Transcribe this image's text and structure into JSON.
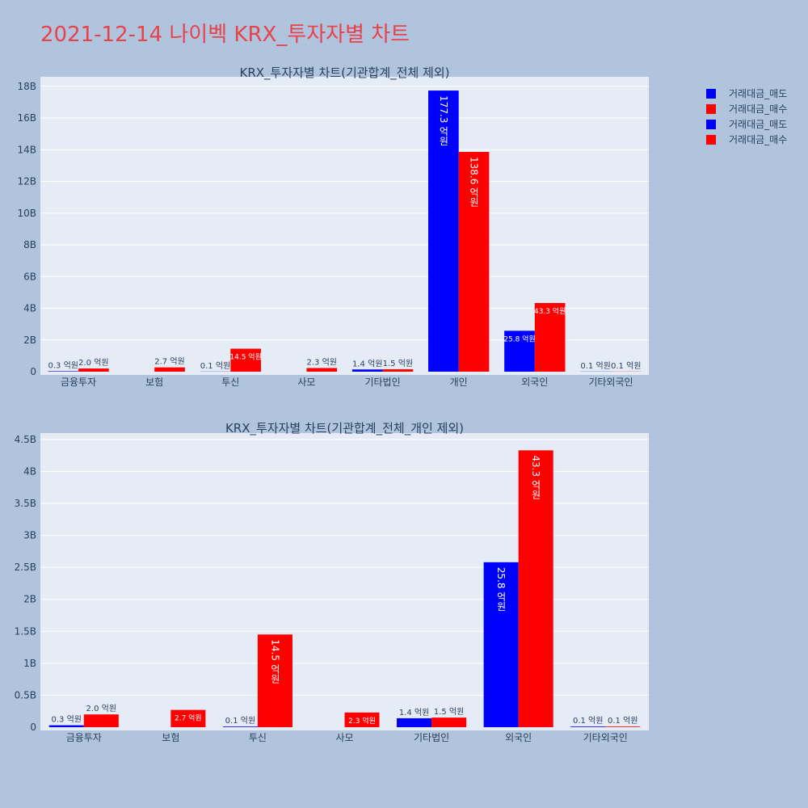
{
  "title": "2021-12-14 나이벡 KRX_투자자별 차트",
  "legend": [
    {
      "label": "거래대금_매도",
      "color": "#0000ff"
    },
    {
      "label": "거래대금_매수",
      "color": "#ff0000"
    },
    {
      "label": "거래대금_매도",
      "color": "#0000ff"
    },
    {
      "label": "거래대금_매수",
      "color": "#ff0000"
    }
  ],
  "chart_data": [
    {
      "type": "bar",
      "title": "KRX_투자자별 차트(기관합계_전체 제외)",
      "categories": [
        "금융투자",
        "보험",
        "투신",
        "사모",
        "기타법인",
        "개인",
        "외국인",
        "기타외국인"
      ],
      "series": [
        {
          "name": "거래대금_매도",
          "color": "#0000ff",
          "values": [
            0.03,
            0,
            0.01,
            0,
            0.14,
            17.73,
            2.58,
            0.01
          ],
          "labels": [
            "0.3 억원",
            "",
            "0.1 억원",
            "",
            "1.4 억원",
            "177.3 억원",
            "25.8 억원",
            "0.1 억원"
          ]
        },
        {
          "name": "거래대금_매수",
          "color": "#ff0000",
          "values": [
            0.2,
            0.27,
            1.45,
            0.23,
            0.15,
            13.86,
            4.33,
            0.01
          ],
          "labels": [
            "2.0 억원",
            "2.7 억원",
            "14.5 억원",
            "2.3 억원",
            "1.5 억원",
            "138.6 억원",
            "43.3 억원",
            "0.1 억원"
          ]
        }
      ],
      "yticks": [
        "0",
        "2B",
        "4B",
        "6B",
        "8B",
        "10B",
        "12B",
        "14B",
        "16B",
        "18B"
      ],
      "ylim": [
        0,
        18.6
      ]
    },
    {
      "type": "bar",
      "title": "KRX_투자자별 차트(기관합계_전체_개인 제외)",
      "categories": [
        "금융투자",
        "보험",
        "투신",
        "사모",
        "기타법인",
        "외국인",
        "기타외국인"
      ],
      "series": [
        {
          "name": "거래대금_매도",
          "color": "#0000ff",
          "values": [
            0.03,
            0,
            0.01,
            0,
            0.14,
            2.58,
            0.01
          ],
          "labels": [
            "0.3 억원",
            "",
            "0.1 억원",
            "",
            "1.4 억원",
            "25.8 억원",
            "0.1 억원"
          ]
        },
        {
          "name": "거래대금_매수",
          "color": "#ff0000",
          "values": [
            0.2,
            0.27,
            1.45,
            0.23,
            0.15,
            4.33,
            0.01
          ],
          "labels": [
            "2.0 억원",
            "2.7 억원",
            "14.5 억원",
            "2.3 억원",
            "1.5 억원",
            "43.3 억원",
            "0.1 억원"
          ]
        }
      ],
      "yticks": [
        "0",
        "0.5B",
        "1B",
        "1.5B",
        "2B",
        "2.5B",
        "3B",
        "3.5B",
        "4B",
        "4.5B"
      ],
      "ylim": [
        0,
        4.6
      ]
    }
  ]
}
